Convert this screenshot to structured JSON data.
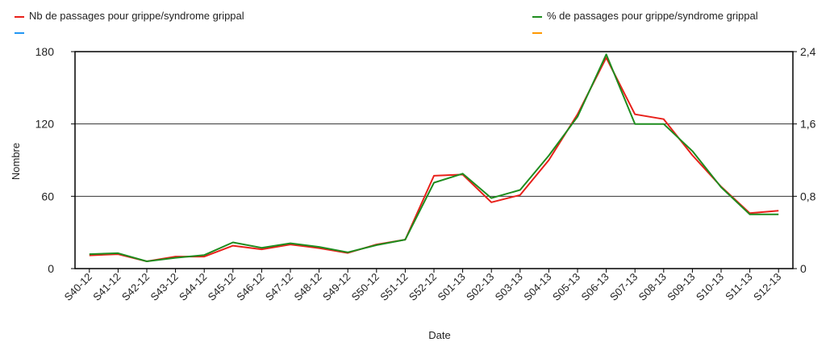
{
  "legend": {
    "left_primary": "Nb de passages pour grippe/syndrome grippal",
    "right_primary": "% de passages pour grippe/syndrome grippal",
    "left_secondary": "",
    "right_secondary": ""
  },
  "colors": {
    "nb_series": "#e8201a",
    "pct_series": "#1e8c1e",
    "legend_blue": "#2196f3",
    "legend_orange": "#ff9800",
    "grid": "#333333",
    "axis": "#000000"
  },
  "chart_data": {
    "type": "line",
    "title": "",
    "xlabel": "Date",
    "ylabel": "Nombre",
    "ylabel_right": "",
    "categories": [
      "S40-12",
      "S41-12",
      "S42-12",
      "S43-12",
      "S44-12",
      "S45-12",
      "S46-12",
      "S47-12",
      "S48-12",
      "S49-12",
      "S50-12",
      "S51-12",
      "S52-12",
      "S01-13",
      "S02-13",
      "S03-13",
      "S04-13",
      "S05-13",
      "S06-13",
      "S07-13",
      "S08-13",
      "S09-13",
      "S10-13",
      "S11-13",
      "S12-13"
    ],
    "ylim": [
      0,
      180
    ],
    "yticks": [
      0,
      60,
      120,
      180
    ],
    "ytick_labels": [
      "0",
      "60",
      "120",
      "180"
    ],
    "ylim_right": [
      0,
      2.4
    ],
    "yticks_right_labels": [
      "0",
      "0,8",
      "1,6",
      "2,4"
    ],
    "grid": "horizontal",
    "legend_position": "top",
    "series": [
      {
        "name": "Nb de passages pour grippe/syndrome grippal",
        "axis": "left",
        "values": [
          11,
          12,
          6,
          10,
          10,
          19,
          16,
          20,
          17,
          13,
          20,
          24,
          77,
          78,
          55,
          61,
          90,
          128,
          175,
          128,
          124,
          94,
          68,
          46,
          48
        ]
      },
      {
        "name": "% de passages pour grippe/syndrome grippal",
        "axis": "right",
        "values": [
          0.16,
          0.17,
          0.08,
          0.12,
          0.15,
          0.29,
          0.23,
          0.28,
          0.24,
          0.18,
          0.26,
          0.32,
          0.95,
          1.05,
          0.78,
          0.87,
          1.25,
          1.68,
          2.37,
          1.6,
          1.6,
          1.3,
          0.9,
          0.6,
          0.6
        ]
      }
    ]
  }
}
